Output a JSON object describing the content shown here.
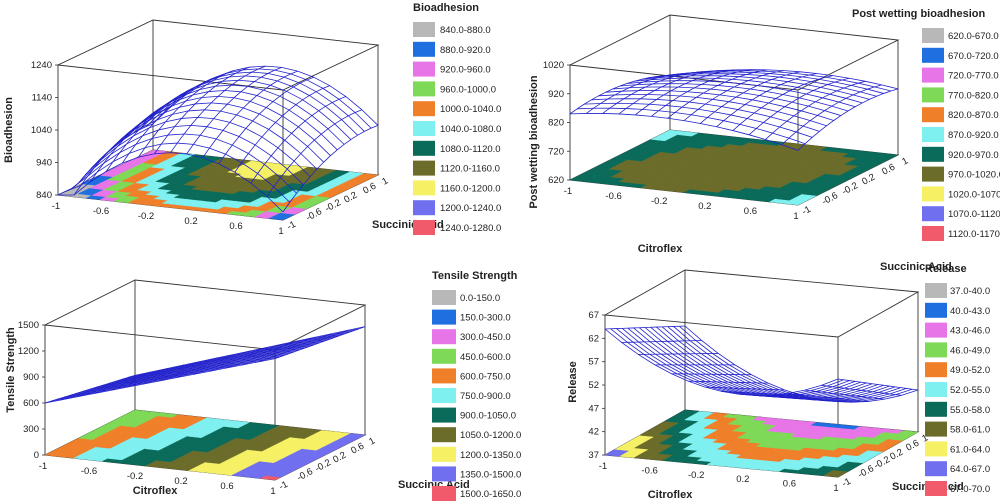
{
  "chart_data": [
    {
      "type": "surface3d",
      "zlabel": "Bioadhesion",
      "xlabel": "",
      "ylabel": "Succinic Acid",
      "legend_title": "Bioadhesion",
      "z_ticks": [
        "840",
        "940",
        "1040",
        "1140",
        "1240"
      ],
      "z_range": [
        840,
        1240
      ],
      "x_ticks": [
        "-1",
        "-0.6",
        "-0.2",
        "0.2",
        "0.6",
        "1"
      ],
      "y_ticks": [
        "-1",
        "-0.6",
        "-0.2",
        "0.2",
        "0.6",
        "1"
      ],
      "surface_type": "dome",
      "surface_z": {
        "center": 1140,
        "corners": [
          940,
          920,
          950,
          930
        ],
        "peak_at": [
          0.1,
          0.8
        ]
      },
      "legend_entries": [
        "840.0-880.0",
        "880.0-920.0",
        "920.0-960.0",
        "960.0-1000.0",
        "1000.0-1040.0",
        "1040.0-1080.0",
        "1080.0-1120.0",
        "1120.0-1160.0",
        "1160.0-1200.0",
        "1200.0-1240.0",
        "1240.0-1280.0"
      ],
      "legend_colors": [
        "#b8b8b8",
        "#1f6fe0",
        "#e875e8",
        "#7ed957",
        "#f07f2a",
        "#7ff0f0",
        "#0a6b5a",
        "#6b6b2a",
        "#f5f064",
        "#6f6ff0",
        "#f05a6a"
      ]
    },
    {
      "type": "surface3d",
      "zlabel": "Post wetting bioadhesion",
      "xlabel": "Citroflex",
      "ylabel": "Succinic Acid",
      "legend_title": "Post wetting bioadhesion",
      "z_ticks": [
        "620",
        "720",
        "820",
        "920",
        "1020"
      ],
      "z_range": [
        620,
        1020
      ],
      "x_ticks": [
        "-1",
        "-0.6",
        "-0.2",
        "0.2",
        "0.6",
        "1"
      ],
      "y_ticks": [
        "-1",
        "-0.6",
        "-0.2",
        "0.2",
        "0.6",
        "1"
      ],
      "surface_type": "saddle",
      "surface_z": {
        "center": 900,
        "corners": [
          860,
          880,
          820,
          840
        ]
      },
      "legend_entries": [
        "620.0-670.0",
        "670.0-720.0",
        "720.0-770.0",
        "770.0-820.0",
        "820.0-870.0",
        "870.0-920.0",
        "920.0-970.0",
        "970.0-1020.0",
        "1020.0-1070.0",
        "1070.0-1120.0",
        "1120.0-1170.0"
      ],
      "legend_colors": [
        "#b8b8b8",
        "#1f6fe0",
        "#e875e8",
        "#7ed957",
        "#f07f2a",
        "#7ff0f0",
        "#0a6b5a",
        "#6b6b2a",
        "#f5f064",
        "#6f6ff0",
        "#f05a6a"
      ]
    },
    {
      "type": "surface3d",
      "zlabel": "Tensile Strength",
      "xlabel": "Citroflex",
      "ylabel": "Succinic Acid",
      "legend_title": "Tensile Strength",
      "z_ticks": [
        "0",
        "300",
        "600",
        "900",
        "1200",
        "1500"
      ],
      "z_range": [
        0,
        1500
      ],
      "x_ticks": [
        "-1",
        "-0.6",
        "-0.2",
        "0.2",
        "0.6",
        "1"
      ],
      "y_ticks": [
        "-1",
        "-0.6",
        "-0.2",
        "0.2",
        "0.6",
        "1"
      ],
      "surface_type": "plane",
      "surface_z": {
        "corners": [
          600,
          1400,
          1250,
          400
        ]
      },
      "legend_entries": [
        "0.0-150.0",
        "150.0-300.0",
        "300.0-450.0",
        "450.0-600.0",
        "600.0-750.0",
        "750.0-900.0",
        "900.0-1050.0",
        "1050.0-1200.0",
        "1200.0-1350.0",
        "1350.0-1500.0",
        "1500.0-1650.0"
      ],
      "legend_colors": [
        "#b8b8b8",
        "#1f6fe0",
        "#e875e8",
        "#7ed957",
        "#f07f2a",
        "#7ff0f0",
        "#0a6b5a",
        "#6b6b2a",
        "#f5f064",
        "#6f6ff0",
        "#f05a6a"
      ]
    },
    {
      "type": "surface3d",
      "zlabel": "Release",
      "xlabel": "Citroflex",
      "ylabel": "Succinic Acid",
      "legend_title": "Release",
      "z_ticks": [
        "37",
        "42",
        "47",
        "52",
        "57",
        "62",
        "67"
      ],
      "z_range": [
        37,
        67
      ],
      "x_ticks": [
        "-1",
        "-0.6",
        "-0.2",
        "0.2",
        "0.6",
        "1"
      ],
      "y_ticks": [
        "-1",
        "-0.6",
        "-0.2",
        "0.2",
        "0.6",
        "1"
      ],
      "surface_type": "trough",
      "surface_z": {
        "corners": [
          64,
          58,
          46,
          55
        ],
        "center": 48
      },
      "legend_entries": [
        "37.0-40.0",
        "40.0-43.0",
        "43.0-46.0",
        "46.0-49.0",
        "49.0-52.0",
        "52.0-55.0",
        "55.0-58.0",
        "58.0-61.0",
        "61.0-64.0",
        "64.0-67.0",
        "67.0-70.0"
      ],
      "legend_colors": [
        "#b8b8b8",
        "#1f6fe0",
        "#e875e8",
        "#7ed957",
        "#f07f2a",
        "#7ff0f0",
        "#0a6b5a",
        "#6b6b2a",
        "#f5f064",
        "#6f6ff0",
        "#f05a6a"
      ]
    }
  ],
  "colors": {
    "mesh": "#2222cc",
    "box": "#333333",
    "background": "#ffffff"
  }
}
